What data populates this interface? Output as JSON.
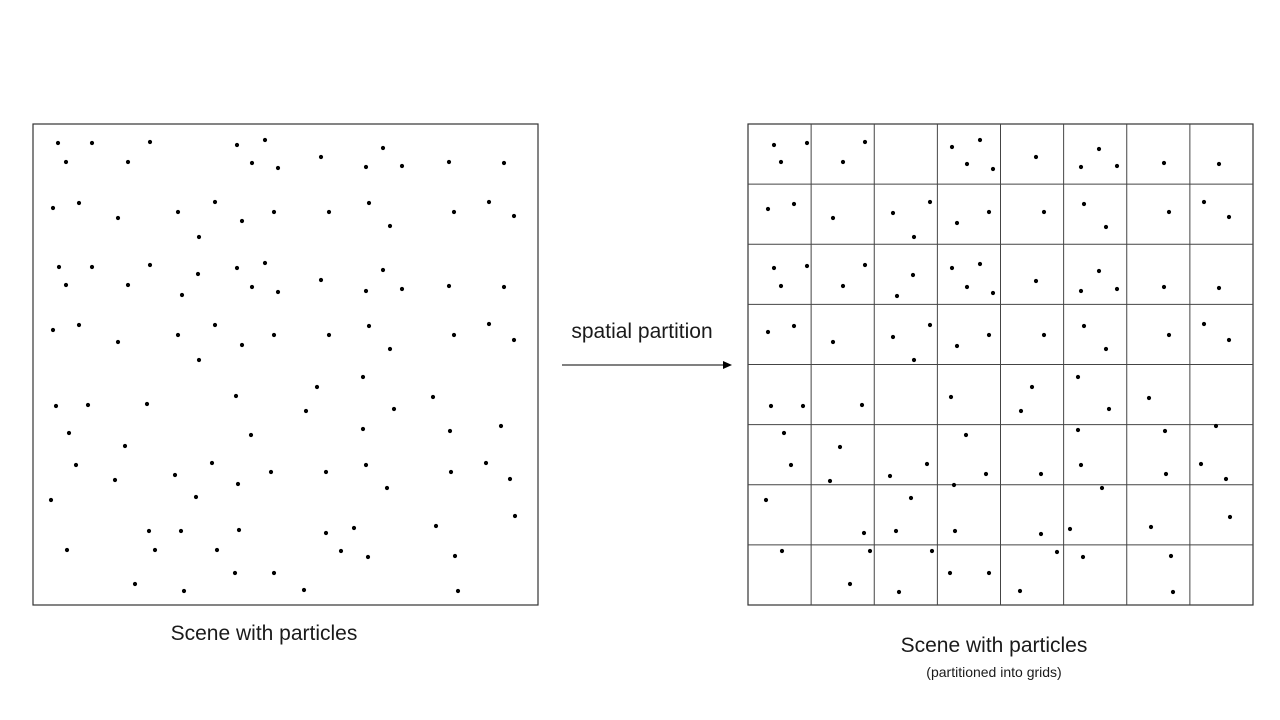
{
  "left_panel": {
    "caption": "Scene with particles"
  },
  "right_panel": {
    "caption": "Scene with particles",
    "subcaption": "(partitioned into grids)",
    "grid": {
      "columns": 8,
      "rows": 8
    }
  },
  "arrow": {
    "label": "spatial partition"
  },
  "colors": {
    "particle": "#000000",
    "frame": "#333333",
    "grid_line": "#444444"
  }
}
